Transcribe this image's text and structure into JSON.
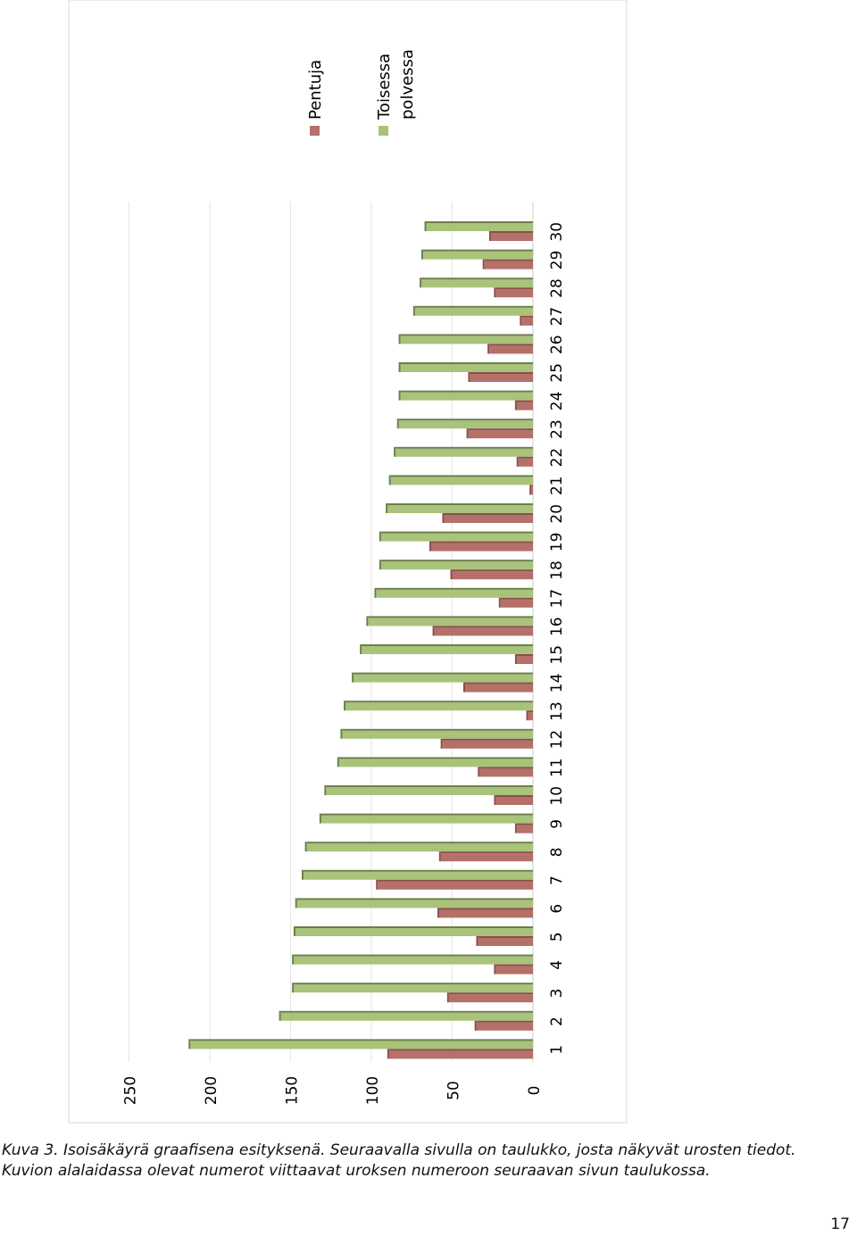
{
  "chart_data": {
    "type": "bar",
    "orientation": "vertical",
    "rotated": true,
    "categories": [
      "1",
      "2",
      "3",
      "4",
      "5",
      "6",
      "7",
      "8",
      "9",
      "10",
      "11",
      "12",
      "13",
      "14",
      "15",
      "16",
      "17",
      "18",
      "19",
      "20",
      "21",
      "22",
      "23",
      "24",
      "25",
      "26",
      "27",
      "28",
      "29",
      "30"
    ],
    "series": [
      {
        "name": "Pentuja",
        "color": "#b5706a",
        "values": [
          89,
          35,
          52,
          23,
          34,
          58,
          96,
          57,
          10,
          23,
          33,
          56,
          3,
          42,
          10,
          61,
          20,
          50,
          63,
          55,
          1,
          9,
          40,
          10,
          39,
          27,
          7,
          23,
          30,
          26
        ]
      },
      {
        "name": "Toisessa polvessa",
        "color": "#a9c37a",
        "values": [
          212,
          156,
          148,
          148,
          147,
          146,
          142,
          140,
          131,
          128,
          120,
          118,
          116,
          111,
          106,
          102,
          97,
          94,
          94,
          90,
          88,
          85,
          83,
          82,
          82,
          82,
          73,
          69,
          68,
          66
        ]
      }
    ],
    "yticks": [
      "0",
      "50",
      "100",
      "150",
      "200",
      "250"
    ],
    "ylim": [
      0,
      250
    ],
    "grid": true,
    "legend": "top-right"
  },
  "caption": "Kuva 3. Isoisäkäyrä graafisena esityksenä. Seuraavalla sivulla on taulukko, josta näkyvät urosten tiedot. Kuvion alalaidassa olevat numerot viittaavat uroksen numeroon seuraavan sivun taulukossa.",
  "page_number": "17"
}
